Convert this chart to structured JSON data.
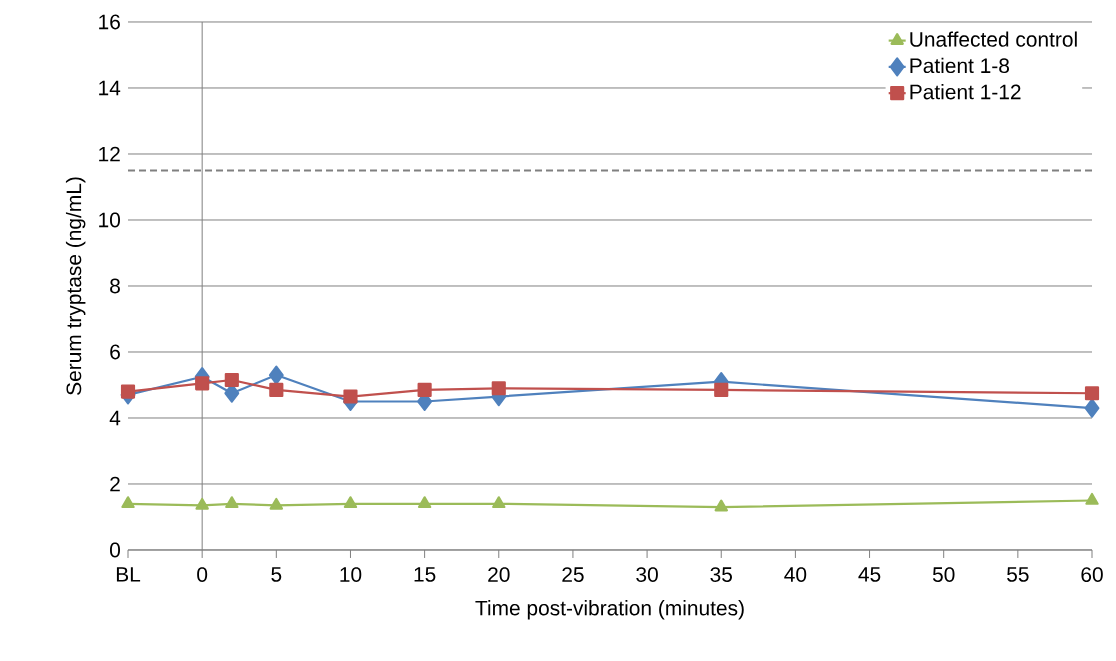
{
  "chart_data": {
    "type": "line",
    "xlabel": "Time post-vibration (minutes)",
    "ylabel": "Serum tryptase (ng/mL)",
    "x": [
      -5,
      0,
      2,
      5,
      10,
      15,
      20,
      35,
      60
    ],
    "series": [
      {
        "name": "Unaffected control",
        "color": "#9bbb59",
        "marker": "triangle",
        "values": [
          1.4,
          1.35,
          1.4,
          1.35,
          1.4,
          1.4,
          1.4,
          1.3,
          1.5
        ]
      },
      {
        "name": "Patient 1-8",
        "color": "#4f81bd",
        "marker": "diamond",
        "values": [
          4.7,
          5.25,
          4.75,
          5.3,
          4.5,
          4.5,
          4.65,
          5.1,
          4.3
        ]
      },
      {
        "name": "Patient 1-12",
        "color": "#c0504d",
        "marker": "square",
        "values": [
          4.8,
          5.05,
          5.15,
          4.85,
          4.65,
          4.85,
          4.9,
          4.85,
          4.75
        ]
      }
    ],
    "xlim": [
      -5,
      60
    ],
    "xticks": [
      {
        "value": -5,
        "label": "BL"
      },
      0,
      5,
      10,
      15,
      20,
      25,
      30,
      35,
      40,
      45,
      50,
      55,
      60
    ],
    "ylim": [
      0,
      16
    ],
    "yticks": [
      0,
      2,
      4,
      6,
      8,
      10,
      12,
      14,
      16
    ],
    "ref_lines": [
      {
        "axis": "x",
        "value": 0,
        "color": "#808080",
        "line_style": "solid"
      },
      {
        "axis": "y",
        "value": 11.5,
        "color": "#808080",
        "line_style": "dashed"
      }
    ],
    "grid": "y",
    "legend": "top right",
    "line_style": "solid"
  }
}
